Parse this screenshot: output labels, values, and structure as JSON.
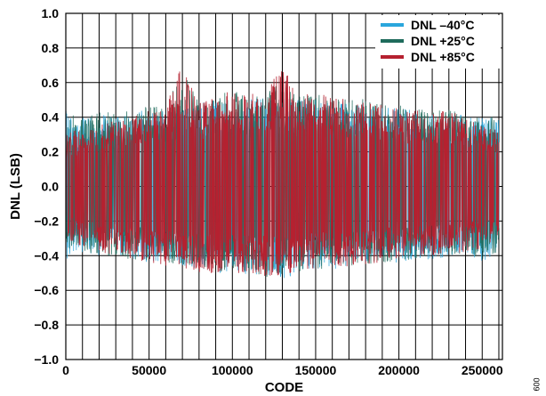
{
  "chart_data": {
    "type": "line",
    "xlabel": "CODE",
    "ylabel": "DNL (LSB)",
    "xlim": [
      0,
      262144
    ],
    "ylim": [
      -1.0,
      1.0
    ],
    "x_ticks": [
      0,
      50000,
      100000,
      150000,
      200000,
      250000
    ],
    "x_tick_labels": [
      "0",
      "50000",
      "100000",
      "150000",
      "200000",
      "250000"
    ],
    "y_ticks": [
      -1.0,
      -0.8,
      -0.6,
      -0.4,
      -0.2,
      0.0,
      0.2,
      0.4,
      0.6,
      0.8,
      1.0
    ],
    "y_tick_labels": [
      "−1.0",
      "−0.8",
      "−0.6",
      "−0.4",
      "−0.2",
      "0.0",
      "0.2",
      "0.4",
      "0.6",
      "0.8",
      "1.0"
    ],
    "grid": true,
    "legend_position": "top-right",
    "series": [
      {
        "name": "DNL –40°C",
        "color": "#2aa6dc",
        "x": [
          0,
          10000,
          20000,
          30000,
          40000,
          50000,
          60000,
          70000,
          80000,
          90000,
          100000,
          110000,
          120000,
          130000,
          140000,
          150000,
          160000,
          170000,
          180000,
          190000,
          200000,
          210000,
          220000,
          230000,
          240000,
          250000,
          260000
        ],
        "envelope_max": [
          0.44,
          0.4,
          0.42,
          0.4,
          0.43,
          0.45,
          0.44,
          0.46,
          0.48,
          0.5,
          0.49,
          0.5,
          0.52,
          0.51,
          0.5,
          0.52,
          0.5,
          0.48,
          0.49,
          0.47,
          0.45,
          0.44,
          0.42,
          0.43,
          0.41,
          0.4,
          0.4
        ],
        "envelope_min": [
          -0.42,
          -0.38,
          -0.4,
          -0.39,
          -0.42,
          -0.44,
          -0.45,
          -0.47,
          -0.48,
          -0.5,
          -0.49,
          -0.51,
          -0.52,
          -0.54,
          -0.5,
          -0.49,
          -0.48,
          -0.47,
          -0.46,
          -0.45,
          -0.44,
          -0.43,
          -0.42,
          -0.41,
          -0.4,
          -0.43,
          -0.4
        ]
      },
      {
        "name": "DNL +25°C",
        "color": "#1f6b5c",
        "x": [
          0,
          10000,
          20000,
          30000,
          40000,
          50000,
          60000,
          70000,
          80000,
          90000,
          100000,
          110000,
          120000,
          130000,
          140000,
          150000,
          160000,
          170000,
          180000,
          190000,
          200000,
          210000,
          220000,
          230000,
          240000,
          250000,
          260000
        ],
        "envelope_max": [
          0.43,
          0.4,
          0.44,
          0.42,
          0.44,
          0.47,
          0.46,
          0.68,
          0.5,
          0.52,
          0.56,
          0.53,
          0.55,
          0.6,
          0.52,
          0.54,
          0.52,
          0.5,
          0.51,
          0.48,
          0.47,
          0.45,
          0.44,
          0.46,
          0.42,
          0.41,
          0.4
        ],
        "envelope_min": [
          -0.4,
          -0.37,
          -0.41,
          -0.4,
          -0.43,
          -0.43,
          -0.44,
          -0.46,
          -0.47,
          -0.5,
          -0.49,
          -0.5,
          -0.53,
          -0.52,
          -0.5,
          -0.48,
          -0.47,
          -0.46,
          -0.45,
          -0.44,
          -0.43,
          -0.42,
          -0.41,
          -0.4,
          -0.39,
          -0.42,
          -0.39
        ]
      },
      {
        "name": "DNL +85°C",
        "color": "#b52130",
        "x": [
          0,
          10000,
          20000,
          30000,
          40000,
          50000,
          60000,
          70000,
          80000,
          90000,
          100000,
          110000,
          120000,
          130000,
          140000,
          150000,
          160000,
          170000,
          180000,
          190000,
          200000,
          210000,
          220000,
          230000,
          240000,
          250000,
          260000
        ],
        "envelope_max": [
          0.3,
          0.34,
          0.36,
          0.38,
          0.4,
          0.44,
          0.46,
          0.72,
          0.48,
          0.52,
          0.56,
          0.53,
          0.58,
          0.7,
          0.54,
          0.56,
          0.52,
          0.5,
          0.5,
          0.47,
          0.45,
          0.44,
          0.42,
          0.45,
          0.4,
          0.38,
          0.32
        ],
        "envelope_min": [
          -0.3,
          -0.36,
          -0.38,
          -0.4,
          -0.42,
          -0.44,
          -0.46,
          -0.48,
          -0.5,
          -0.5,
          -0.5,
          -0.5,
          -0.52,
          -0.52,
          -0.5,
          -0.48,
          -0.47,
          -0.46,
          -0.45,
          -0.44,
          -0.42,
          -0.41,
          -0.4,
          -0.4,
          -0.38,
          -0.36,
          -0.3
        ]
      }
    ]
  },
  "figure_id": "009"
}
